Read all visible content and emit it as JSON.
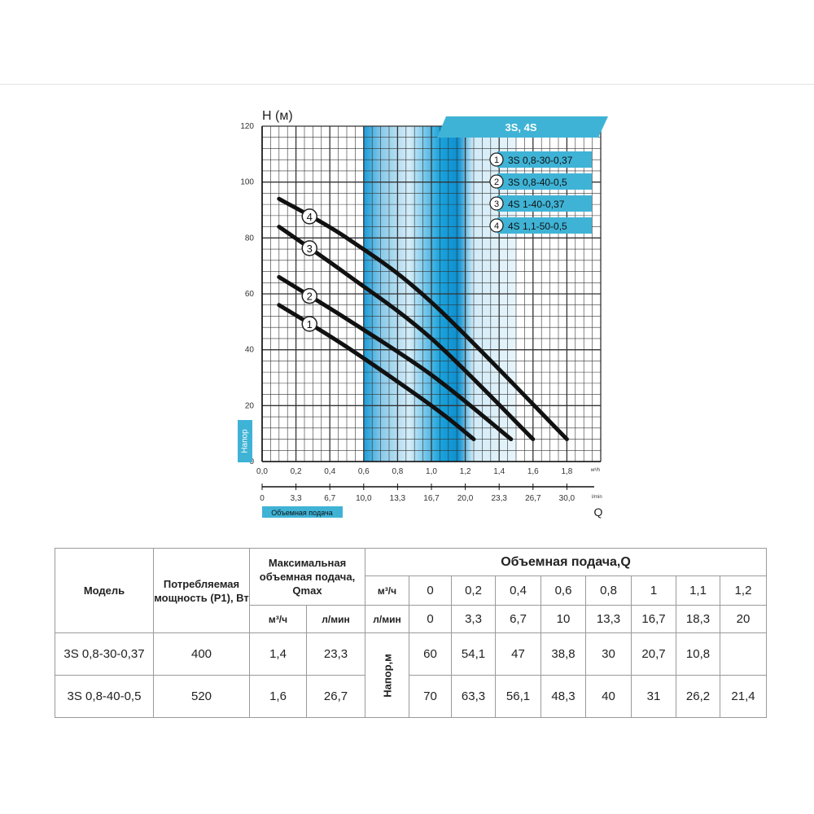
{
  "chart_data": {
    "type": "line",
    "title": "3S, 4S",
    "y_title": "H (м)",
    "y_label": "Напор",
    "x_title": "Q",
    "x_label": "Объемная подача",
    "x_unit_top": "м³/h",
    "x_unit_bottom": "l/min",
    "ylim": [
      0,
      120
    ],
    "xlim": [
      0,
      2.0
    ],
    "y_ticks": [
      "0",
      "20",
      "40",
      "60",
      "80",
      "100",
      "120"
    ],
    "x_ticks_m3h": [
      "0,0",
      "0,2",
      "0,4",
      "0,6",
      "0,8",
      "1,0",
      "1,2",
      "1,4",
      "1,6",
      "1,8"
    ],
    "x_ticks_lmin": [
      "0",
      "3,3",
      "6,7",
      "10,0",
      "13,3",
      "16,7",
      "20,0",
      "23,3",
      "26,7",
      "30,0"
    ],
    "grid": true,
    "legend_position": "top-right",
    "operating_band_m3h": [
      0.6,
      1.5
    ],
    "series": [
      {
        "marker": "1",
        "name": "3S 0,8-30-0,37",
        "x": [
          0.1,
          0.5,
          1.0,
          1.25
        ],
        "y": [
          56,
          41,
          20,
          8
        ]
      },
      {
        "marker": "2",
        "name": "3S 0,8-40-0,5",
        "x": [
          0.1,
          0.5,
          1.0,
          1.47
        ],
        "y": [
          66,
          51,
          31,
          8
        ]
      },
      {
        "marker": "3",
        "name": "4S 1-40-0,37",
        "x": [
          0.1,
          0.5,
          1.0,
          1.6
        ],
        "y": [
          84,
          67,
          44,
          8
        ]
      },
      {
        "marker": "4",
        "name": "4S 1,1-50-0,5",
        "x": [
          0.1,
          0.5,
          1.0,
          1.8
        ],
        "y": [
          94,
          80,
          57,
          8
        ]
      }
    ]
  },
  "table": {
    "col_model": "Модель",
    "col_power": "Потребляемая мощность (P1), Вт",
    "col_qmax": "Максимальная объемная подача, Qmax",
    "col_flow": "Объемная подача,Q",
    "unit_m3h": "м³/ч",
    "unit_lmin": "л/мин",
    "head_label": "Напор,м",
    "q_m3h": [
      "0",
      "0,2",
      "0,4",
      "0,6",
      "0,8",
      "1",
      "1,1",
      "1,2"
    ],
    "q_lmin": [
      "0",
      "3,3",
      "6,7",
      "10",
      "13,3",
      "16,7",
      "18,3",
      "20"
    ],
    "rows": [
      {
        "model": "3S 0,8-30-0,37",
        "power": "400",
        "qmax_m3h": "1,4",
        "qmax_lmin": "23,3",
        "head": [
          "60",
          "54,1",
          "47",
          "38,8",
          "30",
          "20,7",
          "10,8",
          ""
        ]
      },
      {
        "model": "3S 0,8-40-0,5",
        "power": "520",
        "qmax_m3h": "1,6",
        "qmax_lmin": "26,7",
        "head": [
          "70",
          "63,3",
          "56,1",
          "48,3",
          "40",
          "31",
          "26,2",
          "21,4"
        ]
      }
    ]
  },
  "colors": {
    "accent": "#3fb3d6",
    "curve": "#111111",
    "grid": "#333333",
    "band_light": "#d6edf8",
    "band_dark": "#1a9cd8"
  }
}
